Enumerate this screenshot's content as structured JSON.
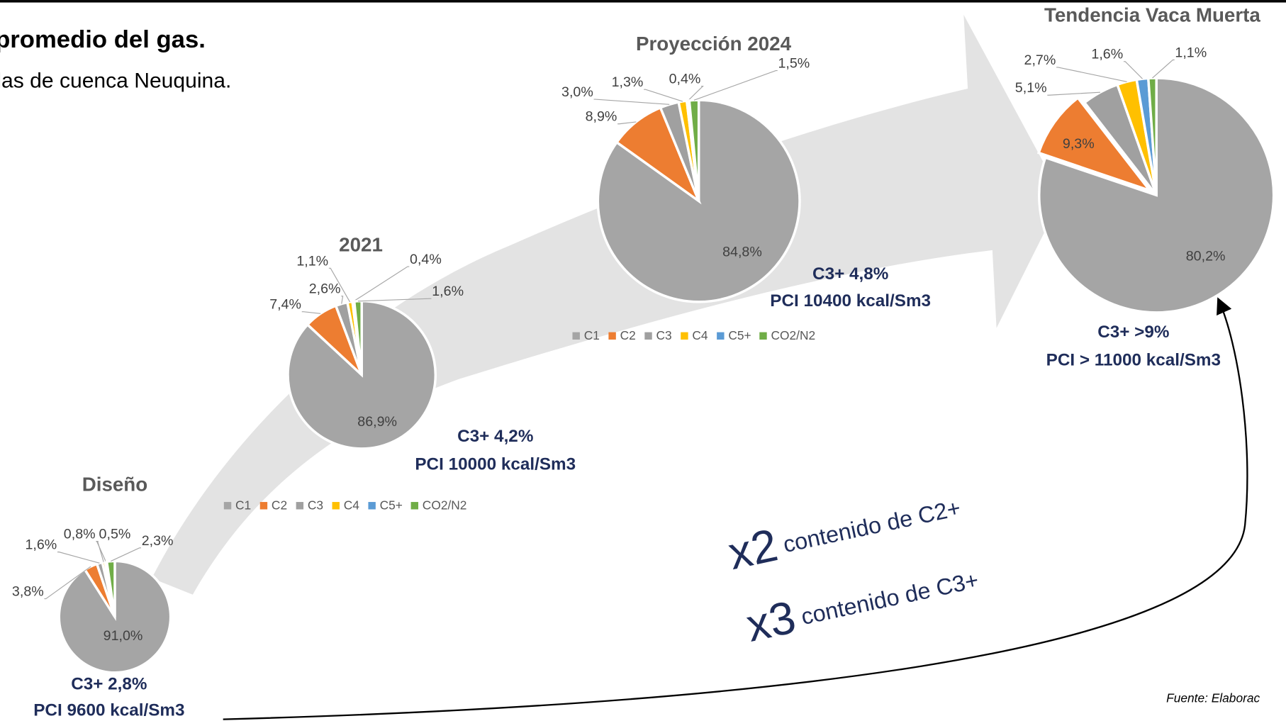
{
  "slide": {
    "title": "promedio del gas.",
    "subtitle": "las de cuenca Neuquina.",
    "x2": "x2",
    "x2_text": "contenido de C2+",
    "x3": "x3",
    "x3_text": "contenido de C3+",
    "source": "Fuente:  Elaborac"
  },
  "chart_data": [
    {
      "type": "pie",
      "title": "Diseño",
      "categories": [
        "C1",
        "C2",
        "C3",
        "C4",
        "C5+",
        "CO2/N2"
      ],
      "values": [
        91.0,
        3.8,
        1.6,
        0.8,
        0.5,
        2.3
      ],
      "value_labels": [
        "91,0%",
        "3,8%",
        "1,6%",
        "0,8%",
        "0,5%",
        "2,3%"
      ],
      "colors": [
        "#a5a5a5",
        "#ed7d31",
        "#a0a0a0",
        "#ffc000",
        "#5b9bd5",
        "#70ad47"
      ],
      "annotations": [
        "C3+ 2,8%",
        "PCI 9600 kcal/Sm3"
      ],
      "legend": false
    },
    {
      "type": "pie",
      "title": "2021",
      "categories": [
        "C1",
        "C2",
        "C3",
        "C4",
        "C5+",
        "CO2/N2"
      ],
      "values": [
        86.9,
        7.4,
        2.6,
        1.1,
        0.4,
        1.6
      ],
      "value_labels": [
        "86,9%",
        "7,4%",
        "2,6%",
        "1,1%",
        "0,4%",
        "1,6%"
      ],
      "colors": [
        "#a5a5a5",
        "#ed7d31",
        "#a0a0a0",
        "#ffc000",
        "#5b9bd5",
        "#70ad47"
      ],
      "annotations": [
        "C3+ 4,2%",
        "PCI 10000 kcal/Sm3"
      ],
      "legend": true
    },
    {
      "type": "pie",
      "title": "Proyección 2024",
      "categories": [
        "C1",
        "C2",
        "C3",
        "C4",
        "C5+",
        "CO2/N2"
      ],
      "values": [
        84.8,
        8.9,
        3.0,
        1.3,
        0.4,
        1.5
      ],
      "value_labels": [
        "84,8%",
        "8,9%",
        "3,0%",
        "1,3%",
        "0,4%",
        "1,5%"
      ],
      "colors": [
        "#a5a5a5",
        "#ed7d31",
        "#a0a0a0",
        "#ffc000",
        "#5b9bd5",
        "#70ad47"
      ],
      "annotations": [
        "C3+ 4,8%",
        "PCI 10400 kcal/Sm3"
      ],
      "legend": true
    },
    {
      "type": "pie",
      "title": "Tendencia Vaca Muerta",
      "categories": [
        "C1",
        "C2",
        "C3",
        "C4",
        "C5+",
        "CO2/N2"
      ],
      "values": [
        80.2,
        9.3,
        5.1,
        2.7,
        1.6,
        1.1
      ],
      "value_labels": [
        "80,2%",
        "9,3%",
        "5,1%",
        "2,7%",
        "1,6%",
        "1,1%"
      ],
      "colors": [
        "#a5a5a5",
        "#ed7d31",
        "#a0a0a0",
        "#ffc000",
        "#5b9bd5",
        "#70ad47"
      ],
      "annotations": [
        "C3+ >9%",
        "PCI > 11000 kcal/Sm3"
      ],
      "legend": false
    }
  ]
}
